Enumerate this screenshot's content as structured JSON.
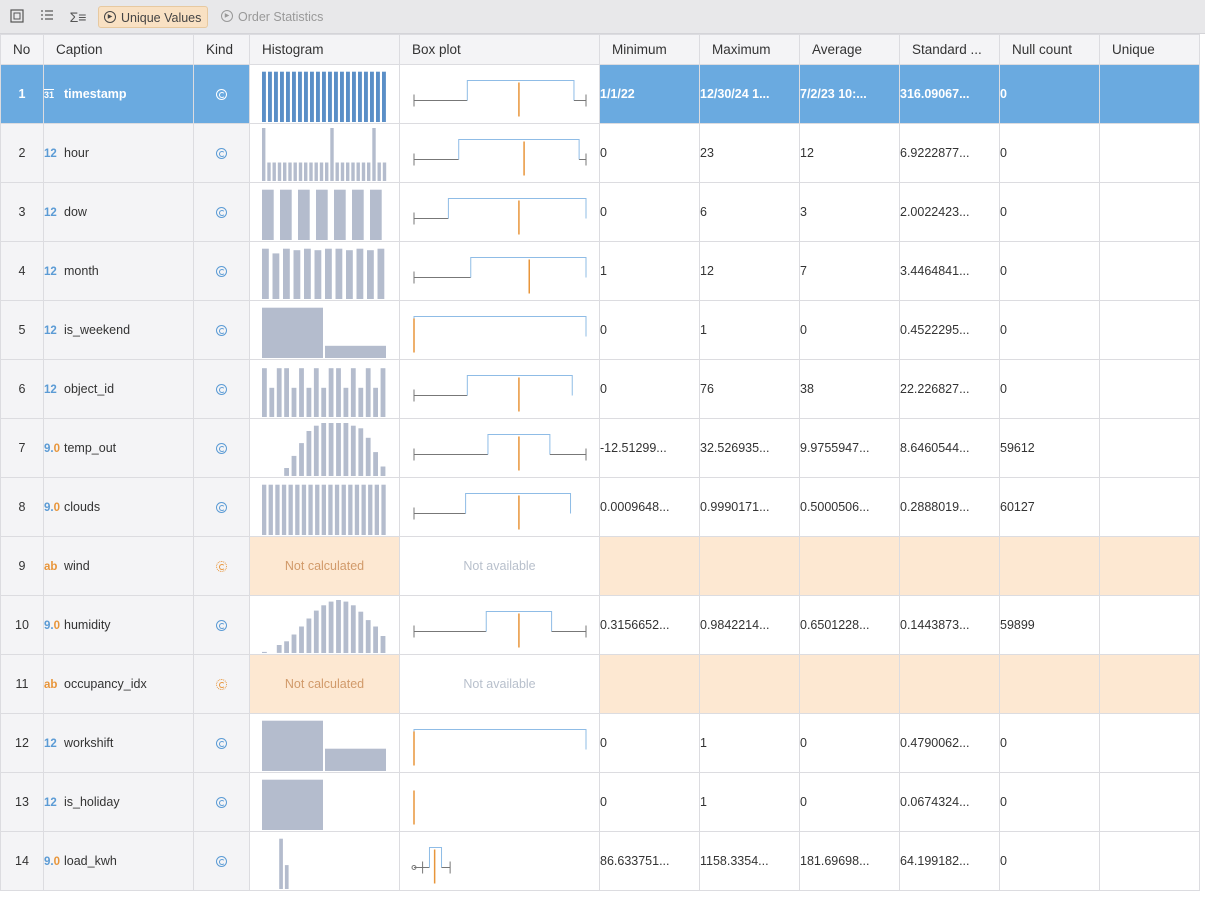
{
  "toolbar": {
    "unique_values_label": "Unique Values",
    "order_statistics_label": "Order Statistics"
  },
  "columns": [
    "No",
    "Caption",
    "Kind",
    "Histogram",
    "Box plot",
    "Minimum",
    "Maximum",
    "Average",
    "Standard ...",
    "Null count",
    "Unique"
  ],
  "labels": {
    "not_calculated": "Not calculated",
    "not_available": "Not available"
  },
  "colors": {
    "selected_row": "#6aaae0",
    "histogram_bar": "#b4bccd",
    "histogram_bar_selected": "#5b8fc7",
    "median_line": "#e8953a",
    "box_line": "#8fbce6",
    "not_available_bg": "#fde8d2"
  },
  "rows": [
    {
      "no": "1",
      "caption": "timestamp",
      "type": "datetime",
      "type_label": "31",
      "kind": "continuous",
      "selected": true,
      "hist": [
        0.95,
        0.95,
        0.95,
        0.95,
        0.95,
        0.95,
        0.95,
        0.95,
        0.95,
        0.95,
        0.95,
        0.95,
        0.95,
        0.95,
        0.95,
        0.95,
        0.95,
        0.95,
        0.95,
        0.95,
        0.95
      ],
      "box": {
        "wmin": 0.0,
        "q1": 0.31,
        "med": 0.61,
        "q3": 0.93,
        "wmax": 0.93,
        "far": 1.0
      },
      "min": "1/1/22",
      "max": "12/30/24 1...",
      "avg": "7/2/23 10:...",
      "std": "316.09067...",
      "nulls": "0",
      "unique": ""
    },
    {
      "no": "2",
      "caption": "hour",
      "type": "integer",
      "type_label": "12",
      "kind": "continuous",
      "hist": [
        1.0,
        0.35,
        0.35,
        0.35,
        0.35,
        0.35,
        0.35,
        0.35,
        0.35,
        0.35,
        0.35,
        0.35,
        0.35,
        1.0,
        0.35,
        0.35,
        0.35,
        0.35,
        0.35,
        0.35,
        0.35,
        1.0,
        0.35,
        0.35
      ],
      "box": {
        "wmin": 0.0,
        "q1": 0.26,
        "med": 0.64,
        "q3": 0.96,
        "wmax": 0.96,
        "far": 1.0
      },
      "min": "0",
      "max": "23",
      "avg": "12",
      "std": "6.9222877...",
      "nulls": "0",
      "unique": ""
    },
    {
      "no": "3",
      "caption": "dow",
      "type": "integer",
      "type_label": "12",
      "kind": "continuous",
      "hist": [
        0.95,
        0.95,
        0.95,
        0.95,
        0.95,
        0.95,
        0.95
      ],
      "box": {
        "wmin": 0.0,
        "q1": 0.2,
        "med": 0.61,
        "q3": 1.0,
        "wmax": 1.0,
        "far": 1.0
      },
      "min": "0",
      "max": "6",
      "avg": "3",
      "std": "2.0022423...",
      "nulls": "0",
      "unique": ""
    },
    {
      "no": "4",
      "caption": "month",
      "type": "integer",
      "type_label": "12",
      "kind": "continuous",
      "hist": [
        0.95,
        0.86,
        0.95,
        0.92,
        0.95,
        0.92,
        0.95,
        0.95,
        0.92,
        0.95,
        0.92,
        0.95
      ],
      "box": {
        "wmin": 0.0,
        "q1": 0.33,
        "med": 0.67,
        "q3": 1.0,
        "wmax": 1.0,
        "far": 1.0
      },
      "min": "1",
      "max": "12",
      "avg": "7",
      "std": "3.4464841...",
      "nulls": "0",
      "unique": ""
    },
    {
      "no": "5",
      "caption": "is_weekend",
      "type": "integer",
      "type_label": "12",
      "kind": "continuous",
      "hist": [
        0.95,
        0.23
      ],
      "box": {
        "wmin": 0.0,
        "q1": 0.0,
        "med": 0.0,
        "q3": 1.0,
        "wmax": 1.0,
        "far": 1.0
      },
      "min": "0",
      "max": "1",
      "avg": "0",
      "std": "0.4522295...",
      "nulls": "0",
      "unique": ""
    },
    {
      "no": "6",
      "caption": "object_id",
      "type": "integer",
      "type_label": "12",
      "kind": "continuous",
      "hist": [
        0.92,
        0.55,
        0.92,
        0.92,
        0.55,
        0.92,
        0.55,
        0.92,
        0.55,
        0.92,
        0.92,
        0.55,
        0.92,
        0.55,
        0.92,
        0.55,
        0.92
      ],
      "box": {
        "wmin": 0.0,
        "q1": 0.31,
        "med": 0.61,
        "q3": 0.92,
        "wmax": 0.92,
        "far": 0.92
      },
      "min": "0",
      "max": "76",
      "avg": "38",
      "std": "22.226827...",
      "nulls": "0",
      "unique": ""
    },
    {
      "no": "7",
      "caption": "temp_out",
      "type": "decimal",
      "type_label": "9.0",
      "kind": "continuous",
      "hist": [
        0,
        0,
        0,
        0.15,
        0.38,
        0.62,
        0.85,
        0.95,
        1.0,
        1.0,
        1.0,
        1.0,
        0.95,
        0.9,
        0.72,
        0.45,
        0.18
      ],
      "box": {
        "wmin": 0.0,
        "q1": 0.43,
        "med": 0.61,
        "q3": 0.79,
        "wmax": 0.79,
        "far": 1.0
      },
      "min": "-12.51299...",
      "max": "32.526935...",
      "avg": "9.9755947...",
      "std": "8.6460544...",
      "nulls": "59612",
      "unique": ""
    },
    {
      "no": "8",
      "caption": "clouds",
      "type": "decimal",
      "type_label": "9.0",
      "kind": "continuous",
      "hist": [
        0.95,
        0.95,
        0.95,
        0.95,
        0.95,
        0.95,
        0.95,
        0.95,
        0.95,
        0.95,
        0.95,
        0.95,
        0.95,
        0.95,
        0.95,
        0.95,
        0.95,
        0.95,
        0.95
      ],
      "box": {
        "wmin": 0.0,
        "q1": 0.3,
        "med": 0.61,
        "q3": 0.91,
        "wmax": 0.91,
        "far": 0.91
      },
      "min": "0.0009648...",
      "max": "0.9990171...",
      "avg": "0.5000506...",
      "std": "0.2888019...",
      "nulls": "60127",
      "unique": ""
    },
    {
      "no": "9",
      "caption": "wind",
      "type": "string",
      "type_label": "ab",
      "kind": "discrete",
      "not_calculated": true,
      "min": "",
      "max": "",
      "avg": "",
      "std": "",
      "nulls": "",
      "unique": ""
    },
    {
      "no": "10",
      "caption": "humidity",
      "type": "decimal",
      "type_label": "9.0",
      "kind": "continuous",
      "hist": [
        0.02,
        0,
        0.15,
        0.22,
        0.35,
        0.5,
        0.65,
        0.8,
        0.9,
        0.97,
        1.0,
        0.97,
        0.9,
        0.78,
        0.62,
        0.5,
        0.32
      ],
      "box": {
        "wmin": 0.0,
        "q1": 0.42,
        "med": 0.61,
        "q3": 0.8,
        "wmax": 0.8,
        "far": 1.0
      },
      "min": "0.3156652...",
      "max": "0.9842214...",
      "avg": "0.6501228...",
      "std": "0.1443873...",
      "nulls": "59899",
      "unique": ""
    },
    {
      "no": "11",
      "caption": "occupancy_idx",
      "type": "string",
      "type_label": "ab",
      "kind": "discrete",
      "not_calculated": true,
      "min": "",
      "max": "",
      "avg": "",
      "std": "",
      "nulls": "",
      "unique": ""
    },
    {
      "no": "12",
      "caption": "workshift",
      "type": "integer",
      "type_label": "12",
      "kind": "continuous",
      "hist": [
        0.95,
        0.42
      ],
      "box": {
        "wmin": 0.0,
        "q1": 0.0,
        "med": 0.0,
        "q3": 1.0,
        "wmax": 1.0,
        "far": 1.0
      },
      "min": "0",
      "max": "1",
      "avg": "0",
      "std": "0.4790062...",
      "nulls": "0",
      "unique": ""
    },
    {
      "no": "13",
      "caption": "is_holiday",
      "type": "integer",
      "type_label": "12",
      "kind": "continuous",
      "hist": [
        0.95,
        0
      ],
      "box": {
        "wmin": 0.0,
        "q1": 0.0,
        "med": 0.0,
        "q3": 0.0,
        "wmax": 0.0,
        "far": 0.0
      },
      "min": "0",
      "max": "1",
      "avg": "0",
      "std": "0.0674324...",
      "nulls": "0",
      "unique": ""
    },
    {
      "no": "14",
      "caption": "load_kwh",
      "type": "decimal",
      "type_label": "9.0",
      "kind": "continuous",
      "hist": [
        0,
        0,
        0,
        0.95,
        0.45,
        0,
        0,
        0,
        0,
        0,
        0,
        0,
        0,
        0,
        0,
        0,
        0,
        0,
        0,
        0,
        0,
        0
      ],
      "box": {
        "wmin": 0.05,
        "q1": 0.09,
        "med": 0.12,
        "q3": 0.16,
        "wmax": 0.21,
        "far": 0.21,
        "outlier": 0.0
      },
      "min": "86.633751...",
      "max": "1158.3354...",
      "avg": "181.69698...",
      "std": "64.199182...",
      "nulls": "0",
      "unique": ""
    }
  ]
}
